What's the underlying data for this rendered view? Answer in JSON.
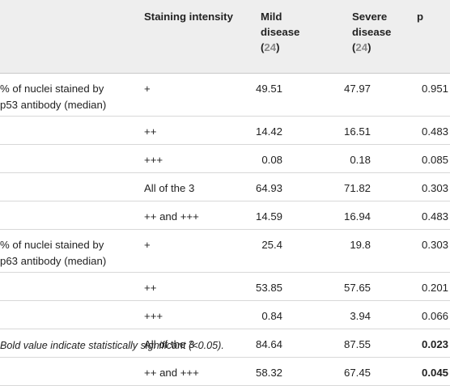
{
  "table": {
    "headers": {
      "intensity": "Staining intensity",
      "mild_line1": "Mild",
      "mild_line2": "disease",
      "mild_open": "(",
      "mild_n": "24",
      "mild_close": ")",
      "severe_line1": "Severe",
      "severe_line2": "disease",
      "severe_open": "(",
      "severe_n": "24",
      "severe_close": ")",
      "p": "p"
    },
    "rows": [
      {
        "label_1": "% of nuclei stained by",
        "label_2": "p53 antibody (median)",
        "intensity": "+",
        "mild": "49.51",
        "severe": "47.97",
        "p": "0.951",
        "bold": false
      },
      {
        "label_1": "",
        "label_2": "",
        "intensity": "++",
        "mild": "14.42",
        "severe": "16.51",
        "p": "0.483",
        "bold": false
      },
      {
        "label_1": "",
        "label_2": "",
        "intensity": "+++",
        "mild": "0.08",
        "severe": "0.18",
        "p": "0.085",
        "bold": false
      },
      {
        "label_1": "",
        "label_2": "",
        "intensity": "All of the 3",
        "mild": "64.93",
        "severe": "71.82",
        "p": "0.303",
        "bold": false
      },
      {
        "label_1": "",
        "label_2": "",
        "intensity": "++ and +++",
        "mild": "14.59",
        "severe": "16.94",
        "p": "0.483",
        "bold": false
      },
      {
        "label_1": "% of nuclei stained by",
        "label_2": "p63 antibody (median)",
        "intensity": "+",
        "mild": "25.4",
        "severe": "19.8",
        "p": "0.303",
        "bold": false
      },
      {
        "label_1": "",
        "label_2": "",
        "intensity": "++",
        "mild": "53.85",
        "severe": "57.65",
        "p": "0.201",
        "bold": false
      },
      {
        "label_1": "",
        "label_2": "",
        "intensity": "+++",
        "mild": "0.84",
        "severe": "3.94",
        "p": "0.066",
        "bold": false
      },
      {
        "label_1": "",
        "label_2": "",
        "intensity": "All of the 3",
        "mild": "84.64",
        "severe": "87.55",
        "p": "0.023",
        "bold": true
      },
      {
        "label_1": "",
        "label_2": "",
        "intensity": "++ and +++",
        "mild": "58.32",
        "severe": "67.45",
        "p": "0.045",
        "bold": true
      }
    ],
    "footnote": "Bold value indicate statistically significant (<0.05)."
  }
}
